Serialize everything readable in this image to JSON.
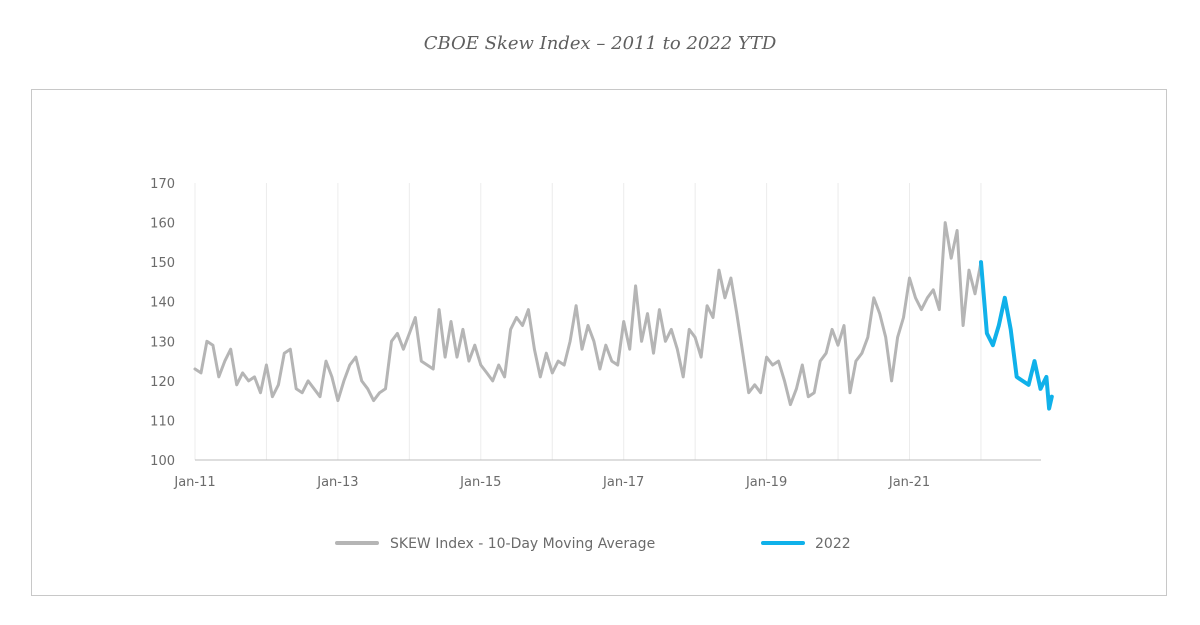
{
  "chart_data": {
    "type": "line",
    "title": "CBOE Skew Index – 2011 to 2022 YTD",
    "xlabel": "",
    "ylabel": "",
    "ylim": [
      100,
      170
    ],
    "yticks": [
      100,
      110,
      120,
      130,
      140,
      150,
      160,
      170
    ],
    "xlim": [
      "2011-01",
      "2022-12"
    ],
    "xticks": [
      {
        "value": "2011-01",
        "label": "Jan-11"
      },
      {
        "value": "2013-01",
        "label": "Jan-13"
      },
      {
        "value": "2015-01",
        "label": "Jan-15"
      },
      {
        "value": "2017-01",
        "label": "Jan-17"
      },
      {
        "value": "2019-01",
        "label": "Jan-19"
      },
      {
        "value": "2021-01",
        "label": "Jan-21"
      }
    ],
    "vertical_gridlines_years": [
      2011,
      2012,
      2013,
      2014,
      2015,
      2016,
      2017,
      2018,
      2019,
      2020,
      2021,
      2022
    ],
    "grid": "vertical",
    "legend": "bottom",
    "series": [
      {
        "name": "SKEW Index - 10-Day Moving Average",
        "color": "#b5b5b5",
        "points": [
          [
            "2011-01",
            123
          ],
          [
            "2011-02",
            122
          ],
          [
            "2011-03",
            130
          ],
          [
            "2011-04",
            129
          ],
          [
            "2011-05",
            121
          ],
          [
            "2011-06",
            125
          ],
          [
            "2011-07",
            128
          ],
          [
            "2011-08",
            119
          ],
          [
            "2011-09",
            122
          ],
          [
            "2011-10",
            120
          ],
          [
            "2011-11",
            121
          ],
          [
            "2011-12",
            117
          ],
          [
            "2012-01",
            124
          ],
          [
            "2012-02",
            116
          ],
          [
            "2012-03",
            119
          ],
          [
            "2012-04",
            127
          ],
          [
            "2012-05",
            128
          ],
          [
            "2012-06",
            118
          ],
          [
            "2012-07",
            117
          ],
          [
            "2012-08",
            120
          ],
          [
            "2012-09",
            118
          ],
          [
            "2012-10",
            116
          ],
          [
            "2012-11",
            125
          ],
          [
            "2012-12",
            121
          ],
          [
            "2013-01",
            115
          ],
          [
            "2013-02",
            120
          ],
          [
            "2013-03",
            124
          ],
          [
            "2013-04",
            126
          ],
          [
            "2013-05",
            120
          ],
          [
            "2013-06",
            118
          ],
          [
            "2013-07",
            115
          ],
          [
            "2013-08",
            117
          ],
          [
            "2013-09",
            118
          ],
          [
            "2013-10",
            130
          ],
          [
            "2013-11",
            132
          ],
          [
            "2013-12",
            128
          ],
          [
            "2014-01",
            132
          ],
          [
            "2014-02",
            136
          ],
          [
            "2014-03",
            125
          ],
          [
            "2014-04",
            124
          ],
          [
            "2014-05",
            123
          ],
          [
            "2014-06",
            138
          ],
          [
            "2014-07",
            126
          ],
          [
            "2014-08",
            135
          ],
          [
            "2014-09",
            126
          ],
          [
            "2014-10",
            133
          ],
          [
            "2014-11",
            125
          ],
          [
            "2014-12",
            129
          ],
          [
            "2015-01",
            124
          ],
          [
            "2015-02",
            122
          ],
          [
            "2015-03",
            120
          ],
          [
            "2015-04",
            124
          ],
          [
            "2015-05",
            121
          ],
          [
            "2015-06",
            133
          ],
          [
            "2015-07",
            136
          ],
          [
            "2015-08",
            134
          ],
          [
            "2015-09",
            138
          ],
          [
            "2015-10",
            128
          ],
          [
            "2015-11",
            121
          ],
          [
            "2015-12",
            127
          ],
          [
            "2016-01",
            122
          ],
          [
            "2016-02",
            125
          ],
          [
            "2016-03",
            124
          ],
          [
            "2016-04",
            130
          ],
          [
            "2016-05",
            139
          ],
          [
            "2016-06",
            128
          ],
          [
            "2016-07",
            134
          ],
          [
            "2016-08",
            130
          ],
          [
            "2016-09",
            123
          ],
          [
            "2016-10",
            129
          ],
          [
            "2016-11",
            125
          ],
          [
            "2016-12",
            124
          ],
          [
            "2017-01",
            135
          ],
          [
            "2017-02",
            128
          ],
          [
            "2017-03",
            144
          ],
          [
            "2017-04",
            130
          ],
          [
            "2017-05",
            137
          ],
          [
            "2017-06",
            127
          ],
          [
            "2017-07",
            138
          ],
          [
            "2017-08",
            130
          ],
          [
            "2017-09",
            133
          ],
          [
            "2017-10",
            128
          ],
          [
            "2017-11",
            121
          ],
          [
            "2017-12",
            133
          ],
          [
            "2018-01",
            131
          ],
          [
            "2018-02",
            126
          ],
          [
            "2018-03",
            139
          ],
          [
            "2018-04",
            136
          ],
          [
            "2018-05",
            148
          ],
          [
            "2018-06",
            141
          ],
          [
            "2018-07",
            146
          ],
          [
            "2018-08",
            137
          ],
          [
            "2018-09",
            127
          ],
          [
            "2018-10",
            117
          ],
          [
            "2018-11",
            119
          ],
          [
            "2018-12",
            117
          ],
          [
            "2019-01",
            126
          ],
          [
            "2019-02",
            124
          ],
          [
            "2019-03",
            125
          ],
          [
            "2019-04",
            120
          ],
          [
            "2019-05",
            114
          ],
          [
            "2019-06",
            118
          ],
          [
            "2019-07",
            124
          ],
          [
            "2019-08",
            116
          ],
          [
            "2019-09",
            117
          ],
          [
            "2019-10",
            125
          ],
          [
            "2019-11",
            127
          ],
          [
            "2019-12",
            133
          ],
          [
            "2020-01",
            129
          ],
          [
            "2020-02",
            134
          ],
          [
            "2020-03",
            117
          ],
          [
            "2020-04",
            125
          ],
          [
            "2020-05",
            127
          ],
          [
            "2020-06",
            131
          ],
          [
            "2020-07",
            141
          ],
          [
            "2020-08",
            137
          ],
          [
            "2020-09",
            131
          ],
          [
            "2020-10",
            120
          ],
          [
            "2020-11",
            131
          ],
          [
            "2020-12",
            136
          ],
          [
            "2021-01",
            146
          ],
          [
            "2021-02",
            141
          ],
          [
            "2021-03",
            138
          ],
          [
            "2021-04",
            141
          ],
          [
            "2021-05",
            143
          ],
          [
            "2021-06",
            138
          ],
          [
            "2021-07",
            160
          ],
          [
            "2021-08",
            151
          ],
          [
            "2021-09",
            158
          ],
          [
            "2021-10",
            134
          ],
          [
            "2021-11",
            148
          ],
          [
            "2021-12",
            142
          ],
          [
            "2022-01",
            150
          ]
        ]
      },
      {
        "name": "2022",
        "color": "#10b1ea",
        "points": [
          [
            "2022-01",
            150
          ],
          [
            "2022-02",
            132
          ],
          [
            "2022-03",
            129
          ],
          [
            "2022-04",
            134
          ],
          [
            "2022-05",
            141
          ],
          [
            "2022-06",
            133
          ],
          [
            "2022-07",
            121
          ],
          [
            "2022-08",
            120
          ],
          [
            "2022-09",
            119
          ],
          [
            "2022-10",
            125
          ],
          [
            "2022-11",
            118
          ],
          [
            "2022-12",
            121
          ],
          [
            "2022-12",
            113
          ],
          [
            "2022-12",
            116
          ]
        ]
      }
    ]
  }
}
